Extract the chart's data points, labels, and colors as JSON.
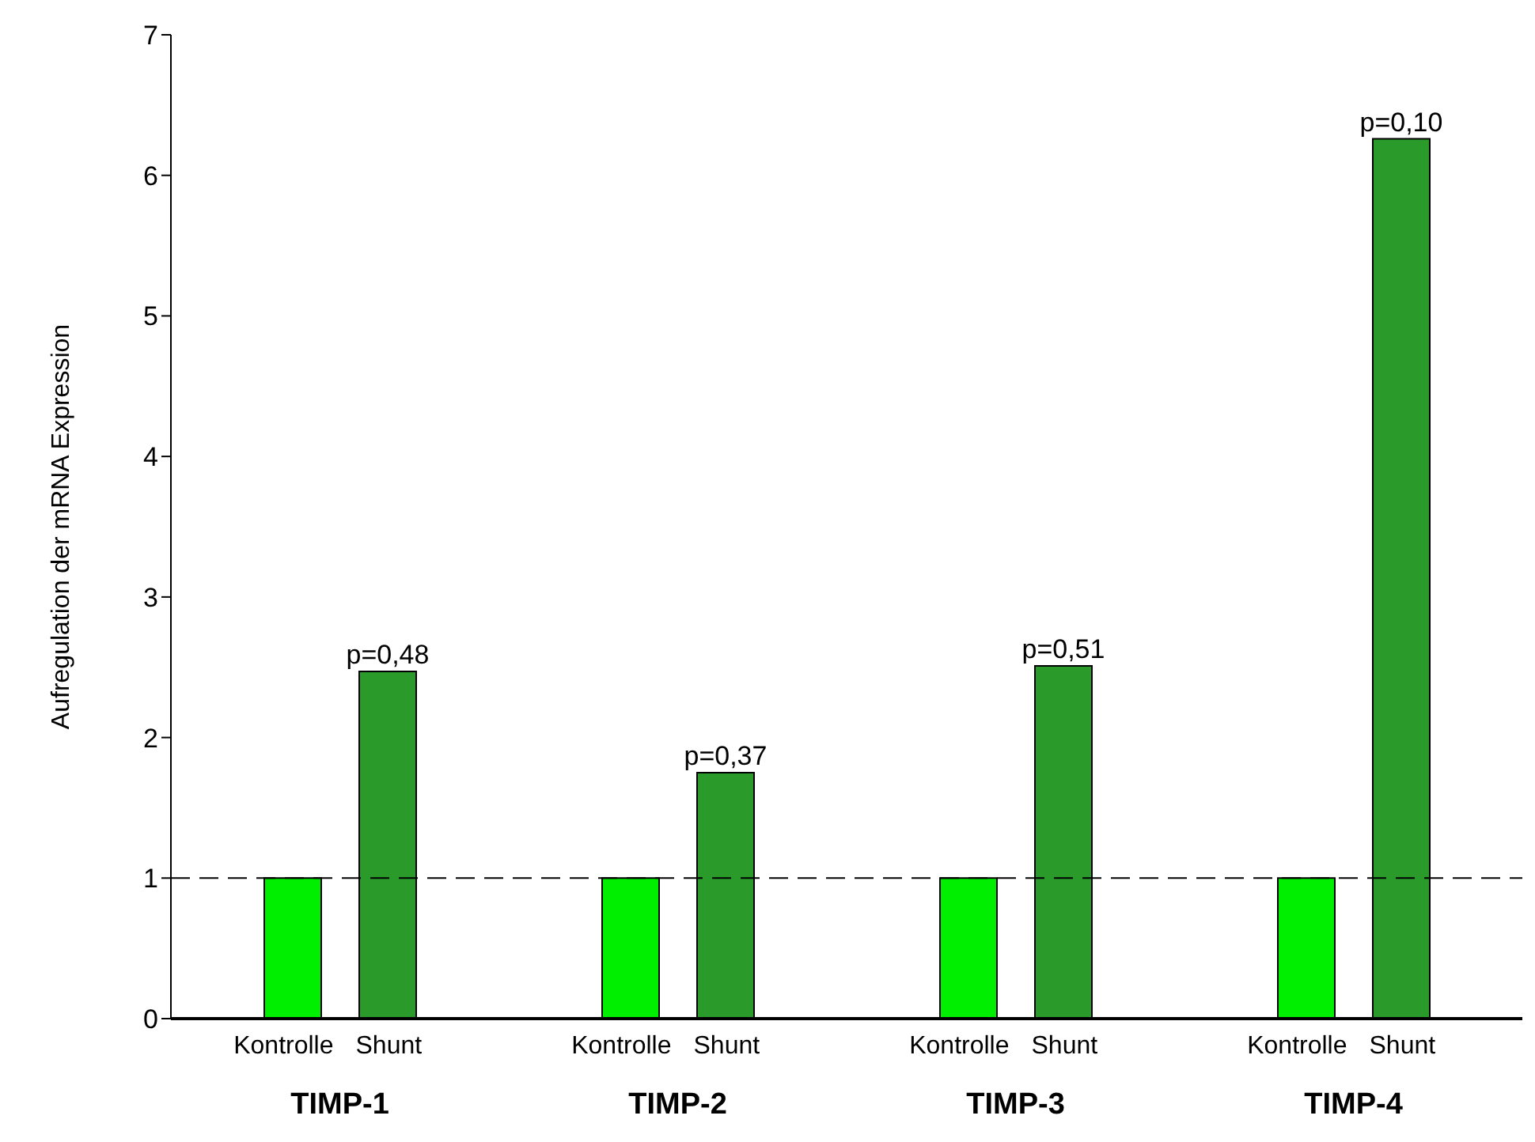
{
  "chart_data": {
    "type": "bar",
    "ylabel": "Aufregulation der mRNA Expression",
    "categories": [
      "TIMP-1",
      "TIMP-2",
      "TIMP-3",
      "TIMP-4"
    ],
    "series": [
      {
        "name": "Kontrolle",
        "color": "#00ee00",
        "values": [
          1,
          1,
          1,
          1
        ]
      },
      {
        "name": "Shunt",
        "color": "#2a9a2a",
        "values": [
          2.47,
          1.75,
          2.51,
          6.26
        ]
      }
    ],
    "annotations": [
      "p=0,48",
      "p=0,37",
      "p=0,51",
      "p=0,10"
    ],
    "ylim": [
      0,
      7
    ],
    "yticks": [
      0,
      1,
      2,
      3,
      4,
      5,
      6,
      7
    ],
    "grid": false,
    "legend": false,
    "ref_lines": [
      {
        "axis": "y",
        "value": 1,
        "line_style": "dashed",
        "color": "#000000"
      }
    ]
  }
}
